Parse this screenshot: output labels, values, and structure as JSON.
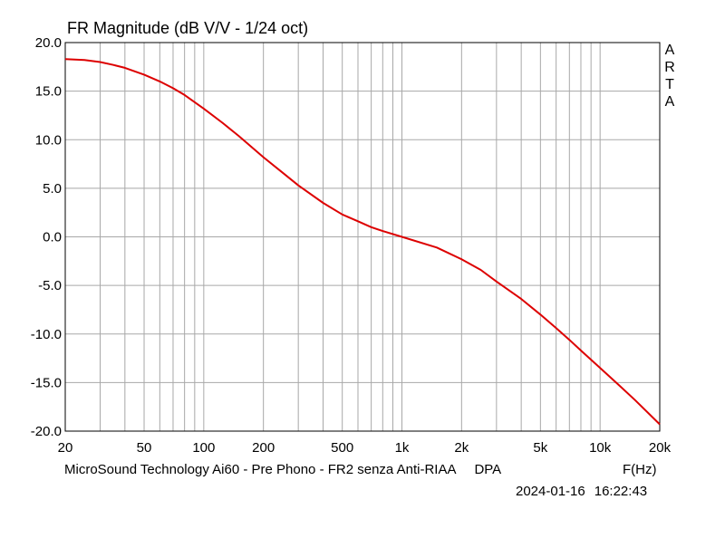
{
  "chart_data": {
    "type": "line",
    "title": "FR Magnitude (dB V/V - 1/24 oct)",
    "xlabel": "F(Hz)",
    "ylabel": "",
    "xscale": "log",
    "xlim": [
      20,
      20000
    ],
    "ylim": [
      -20,
      20
    ],
    "grid": true,
    "yticks": [
      "20.0",
      "15.0",
      "10.0",
      "5.0",
      "0.0",
      "-5.0",
      "-10.0",
      "-15.0",
      "-20.0"
    ],
    "xticks": [
      {
        "value": 20,
        "label": "20"
      },
      {
        "value": 50,
        "label": "50"
      },
      {
        "value": 100,
        "label": "100"
      },
      {
        "value": 200,
        "label": "200"
      },
      {
        "value": 500,
        "label": "500"
      },
      {
        "value": 1000,
        "label": "1k"
      },
      {
        "value": 2000,
        "label": "2k"
      },
      {
        "value": 5000,
        "label": "5k"
      },
      {
        "value": 10000,
        "label": "10k"
      },
      {
        "value": 20000,
        "label": "20k"
      }
    ],
    "series": [
      {
        "color": "#dd0000",
        "x": [
          20,
          25,
          30,
          35,
          40,
          50,
          60,
          70,
          80,
          100,
          125,
          150,
          200,
          250,
          300,
          400,
          500,
          600,
          700,
          800,
          1000,
          1500,
          2000,
          2500,
          3000,
          4000,
          5000,
          6000,
          7000,
          8000,
          10000,
          12500,
          15000,
          20000
        ],
        "y": [
          18.3,
          18.2,
          18.0,
          17.7,
          17.4,
          16.7,
          16.0,
          15.3,
          14.6,
          13.2,
          11.7,
          10.4,
          8.2,
          6.6,
          5.3,
          3.5,
          2.3,
          1.6,
          1.0,
          0.6,
          0.0,
          -1.1,
          -2.3,
          -3.4,
          -4.6,
          -6.4,
          -8.0,
          -9.4,
          -10.6,
          -11.7,
          -13.5,
          -15.3,
          -16.8,
          -19.3
        ]
      }
    ]
  },
  "annotations": {
    "watermark": [
      "A",
      "R",
      "T",
      "A"
    ],
    "caption": "MicroSound Technology Ai60 - Pre Phono - FR2 senza Anti-RIAA     DPA",
    "date": "2024-01-16",
    "time": "16:22:43"
  }
}
